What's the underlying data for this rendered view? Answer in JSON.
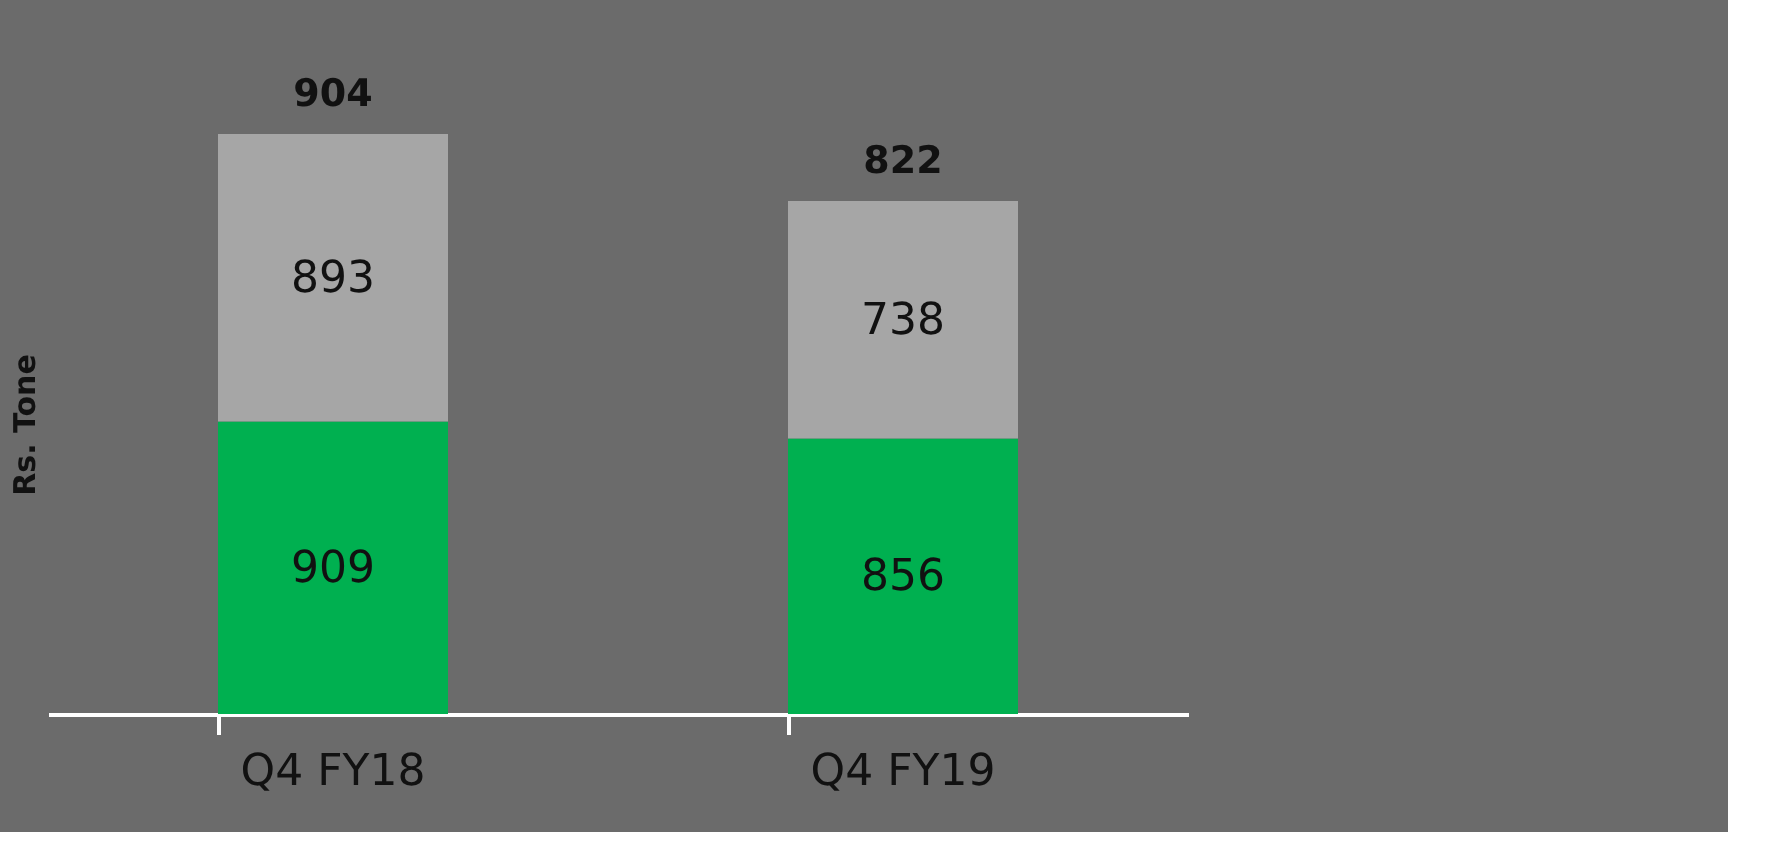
{
  "chart_data": {
    "type": "bar",
    "ylabel": "Rs.  Tone",
    "categories": [
      "Q4 FY18",
      "Q4 FY19"
    ],
    "stacked": true,
    "data_labels": true,
    "annotations": [
      "904",
      "822"
    ],
    "series": [
      {
        "color": "#00b050",
        "values": [
          909,
          856
        ]
      },
      {
        "color": "#a6a6a6",
        "values": [
          893,
          738
        ]
      }
    ]
  }
}
